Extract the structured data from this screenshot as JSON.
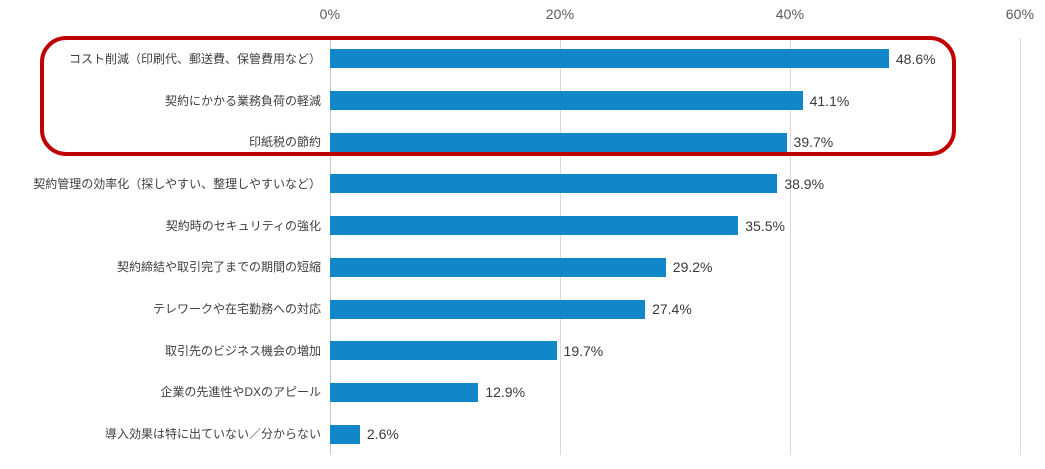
{
  "chart_data": {
    "type": "bar",
    "orientation": "horizontal",
    "title": "",
    "xlabel": "",
    "ylabel": "",
    "xlim": [
      0,
      60
    ],
    "grid": true,
    "x_ticks": [
      {
        "label": "0%",
        "value": 0
      },
      {
        "label": "20%",
        "value": 20
      },
      {
        "label": "40%",
        "value": 40
      },
      {
        "label": "60%",
        "value": 60
      }
    ],
    "categories": [
      "コスト削減（印刷代、郵送費、保管費用など）",
      "契約にかかる業務負荷の軽減",
      "印紙税の節約",
      "契約管理の効率化（探しやすい、整理しやすいなど）",
      "契約時のセキュリティの強化",
      "契約締結や取引完了までの期間の短縮",
      "テレワークや在宅勤務への対応",
      "取引先のビジネス機会の増加",
      "企業の先進性やDXのアピール",
      "導入効果は特に出ていない／分からない"
    ],
    "values": [
      48.6,
      41.1,
      39.7,
      38.9,
      35.5,
      29.2,
      27.4,
      19.7,
      12.9,
      2.6
    ],
    "value_labels": [
      "48.6%",
      "41.1%",
      "39.7%",
      "38.9%",
      "35.5%",
      "29.2%",
      "27.4%",
      "19.7%",
      "12.9%",
      "2.6%"
    ],
    "bar_color": "#1186c9",
    "highlight": {
      "description": "red rounded rectangle around top 3 bars",
      "rows": [
        0,
        1,
        2
      ],
      "color": "#c00000"
    }
  }
}
